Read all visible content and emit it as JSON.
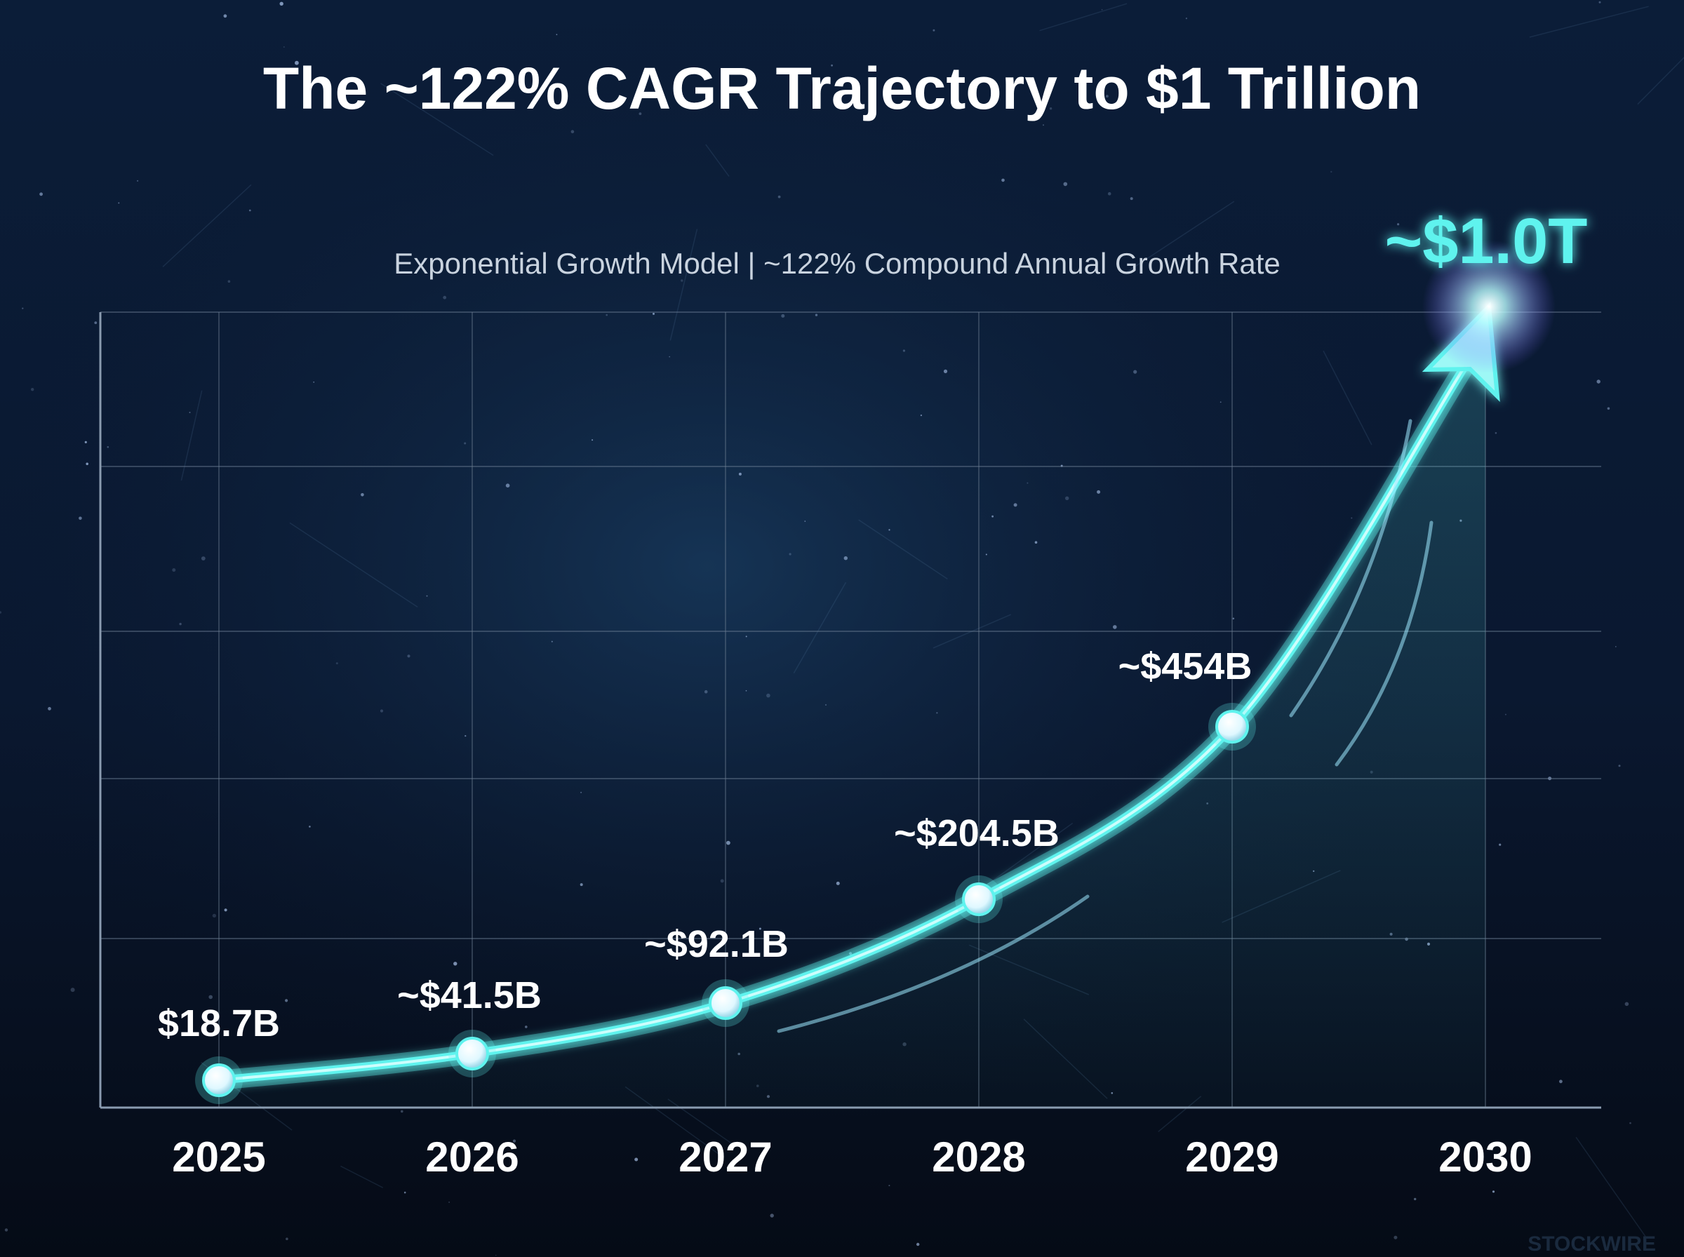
{
  "title": "The ~122% CAGR Trajectory to $1 Trillion",
  "subtitle": "Exponential Growth Model | ~122% Compound Annual Growth Rate",
  "watermark": "STOCKWIRE",
  "colors": {
    "background_top": "#0b1d38",
    "background_bottom": "#050b16",
    "curve": "#5ff3ee",
    "highlight": "#8ff7ff",
    "text": "#ffffff",
    "subtitle": "#c9d3df",
    "grid": "#6b7d92"
  },
  "chart_data": {
    "type": "line",
    "title": "The ~122% CAGR Trajectory to $1 Trillion",
    "subtitle": "Exponential Growth Model | ~122% Compound Annual Growth Rate",
    "xlabel": "",
    "ylabel": "",
    "x": [
      "2025",
      "2026",
      "2027",
      "2028",
      "2029",
      "2030"
    ],
    "series": [
      {
        "values": [
          18.7,
          41.5,
          92.1,
          204.5,
          454,
          1000
        ],
        "labels": [
          "$18.7B",
          "~$41.5B",
          "~$92.1B",
          "~$204.5B",
          "~$454B",
          "~$1.0T"
        ]
      }
    ],
    "ylim": [
      0,
      1000
    ],
    "grid": true,
    "legend": "none"
  }
}
